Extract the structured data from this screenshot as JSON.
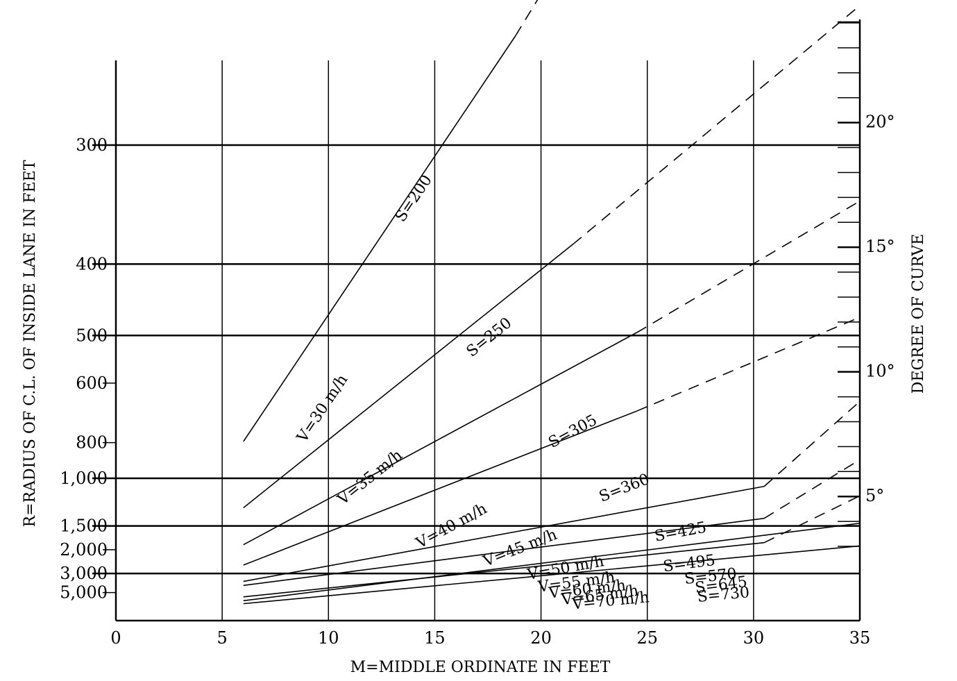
{
  "chart_data": {
    "type": "line",
    "title": "",
    "xlabel": "M=MIDDLE ORDINATE IN FEET",
    "ylabel_left": "R=RADIUS OF C.L. OF INSIDE LANE IN FEET",
    "ylabel_right": "DEGREE OF CURVE",
    "xlim": [
      0,
      35
    ],
    "x_ticks": [
      "0",
      "5",
      "10",
      "15",
      "20",
      "25",
      "30",
      "35"
    ],
    "x_tick_values": [
      0,
      5,
      10,
      15,
      20,
      25,
      30,
      35
    ],
    "y_scale": "reciprocal",
    "y_ticks": [
      {
        "value": 300,
        "label": "300"
      },
      {
        "value": 400,
        "label": "400"
      },
      {
        "value": 500,
        "label": "500"
      },
      {
        "value": 600,
        "label": "600"
      },
      {
        "value": 800,
        "label": "800"
      },
      {
        "value": 1000,
        "label": "1,000"
      },
      {
        "value": 1500,
        "label": "1,500"
      },
      {
        "value": 2000,
        "label": "2,000"
      },
      {
        "value": 3000,
        "label": "3,000"
      },
      {
        "value": 5000,
        "label": "5,000"
      }
    ],
    "y_major_lines": [
      300,
      400,
      500,
      1000,
      1500,
      3000
    ],
    "y_minor_lines": [
      600,
      800,
      2000,
      5000
    ],
    "degree_ticks": [
      {
        "value": 5,
        "label": "5°"
      },
      {
        "value": 10,
        "label": "10°"
      },
      {
        "value": 15,
        "label": "15°"
      },
      {
        "value": 20,
        "label": "20°"
      }
    ],
    "series": [
      {
        "speed_label": "V=30 m/h",
        "sight_label": "S=200",
        "solid": [
          [
            6,
            795
          ],
          [
            18.8,
            244
          ]
        ],
        "dashed": [
          [
            18.8,
            244
          ],
          [
            22.5,
            200
          ]
        ]
      },
      {
        "speed_label": "V=35 m/h",
        "sight_label": "S=250",
        "solid": [
          [
            6,
            1260
          ],
          [
            21.5,
            379
          ]
        ],
        "dashed": [
          [
            21.5,
            379
          ],
          [
            35,
            232
          ]
        ]
      },
      {
        "speed_label": "V=40 m/h",
        "sight_label": "S=305",
        "solid": [
          [
            6,
            1870
          ],
          [
            24.5,
            495
          ]
        ],
        "dashed": [
          [
            24.5,
            495
          ],
          [
            35,
            340
          ]
        ]
      },
      {
        "speed_label": "V=45 m/h",
        "sight_label": "S=360",
        "solid": [
          [
            6,
            2550
          ],
          [
            24.5,
            680
          ]
        ],
        "dashed": [
          [
            24.5,
            680
          ],
          [
            35,
            470
          ]
        ]
      },
      {
        "speed_label": "V=50 m/h",
        "sight_label": "S=425",
        "solid": [
          [
            6,
            3600
          ],
          [
            30.5,
            1060
          ]
        ],
        "dashed": [
          [
            30.5,
            1060
          ],
          [
            35,
            650
          ]
        ]
      },
      {
        "speed_label": "V=55 m/h",
        "sight_label": "S=495",
        "solid": [
          [
            6,
            4000
          ],
          [
            30.5,
            1390
          ]
        ],
        "dashed": [
          [
            30.5,
            1390
          ],
          [
            35,
            885
          ]
        ]
      },
      {
        "speed_label": "V=60 m/h",
        "sight_label": "S=570",
        "solid": [
          [
            6,
            5900
          ],
          [
            30.5,
            1820
          ]
        ],
        "dashed": [
          [
            30.5,
            1820
          ],
          [
            35,
            1140
          ]
        ]
      },
      {
        "speed_label": "V=65 m/h",
        "sight_label": "S=645",
        "solid": [
          [
            6,
            7000
          ],
          [
            35,
            1460
          ]
        ],
        "dashed": []
      },
      {
        "speed_label": "V=70 m/h",
        "sight_label": "S=730",
        "solid": [
          [
            6,
            8200
          ],
          [
            35,
            1900
          ]
        ],
        "dashed": []
      }
    ],
    "grid": true,
    "legend": "none"
  }
}
